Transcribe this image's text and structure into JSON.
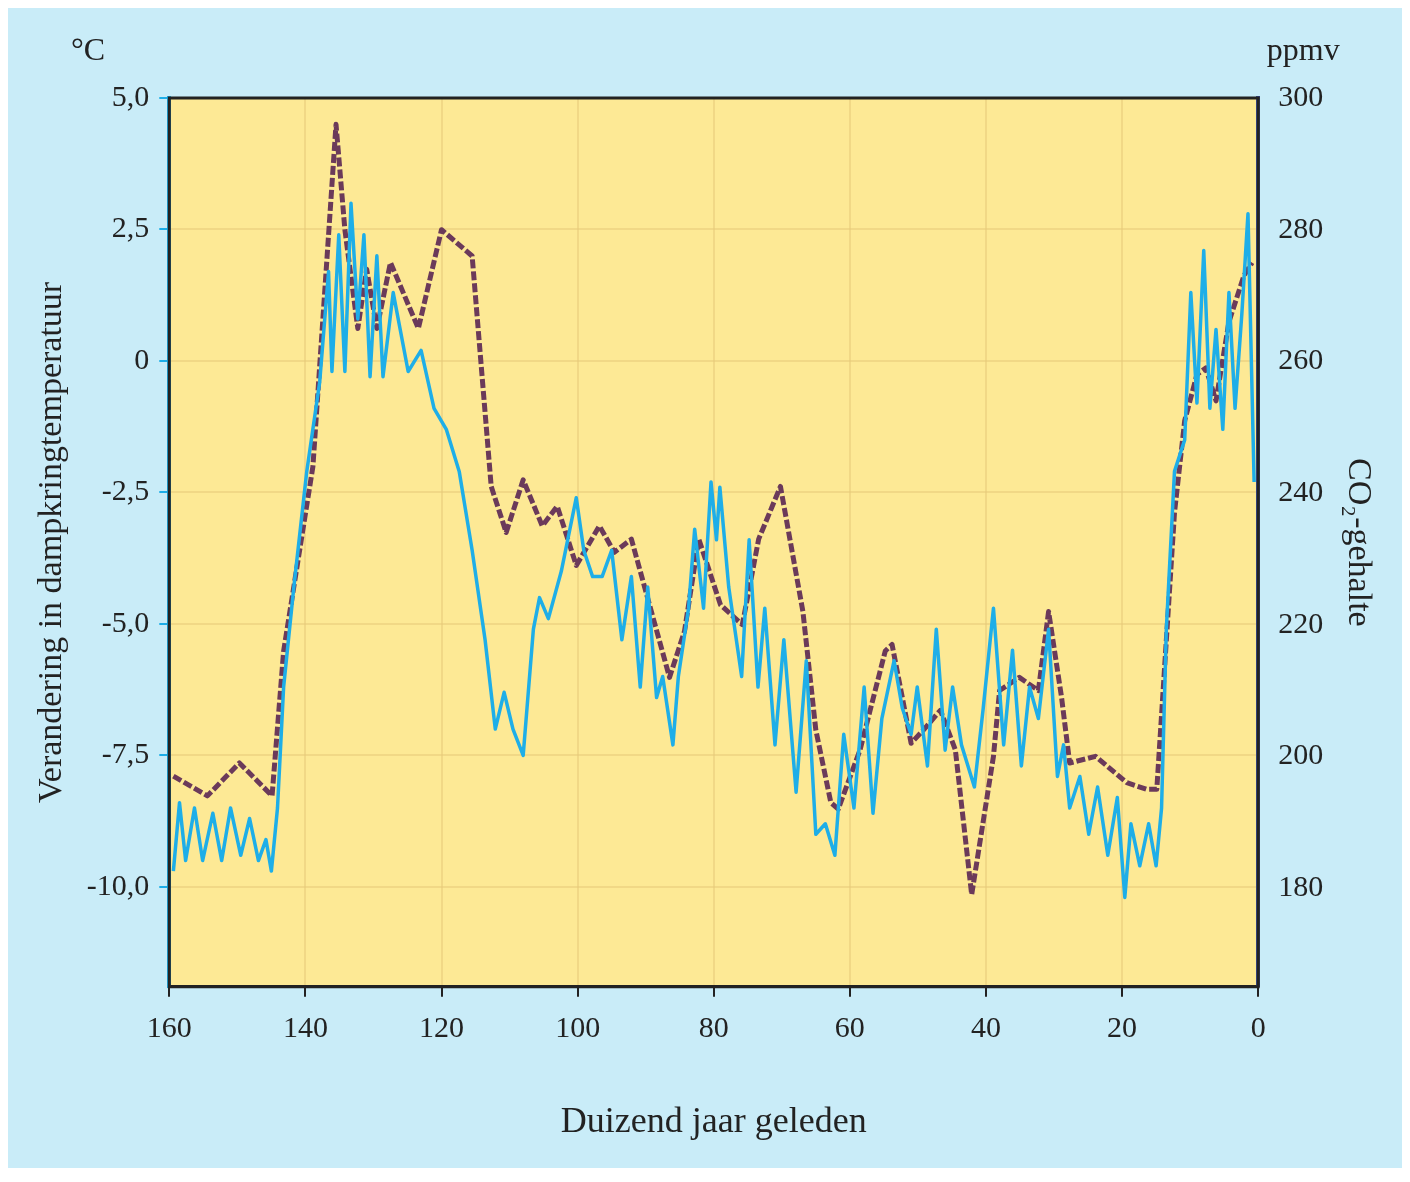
{
  "chart_data": {
    "type": "line",
    "xlabel": "Duizend jaar geleden",
    "ylabel": "Verandering in dampkringtemperatuur",
    "y2label": "CO₂-gehalte",
    "annotations": [
      "°C",
      "ppmv"
    ],
    "xlim": [
      160,
      0
    ],
    "xticks": [
      160,
      140,
      120,
      100,
      80,
      60,
      40,
      20,
      0
    ],
    "ylim": [
      -11.9,
      5.0
    ],
    "yticks": [
      {
        "value": 5,
        "label": "5,0"
      },
      {
        "value": 2.5,
        "label": "2,5"
      },
      0,
      {
        "value": -2.5,
        "label": "-2,5"
      },
      {
        "value": -5,
        "label": "-5,0"
      },
      {
        "value": -7.5,
        "label": "-7,5"
      },
      {
        "value": -10,
        "label": "-10,0"
      }
    ],
    "y2lim": [
      165,
      300
    ],
    "y2ticks": [
      180,
      200,
      220,
      240,
      260,
      280,
      300
    ],
    "grid": true,
    "legend": false,
    "marker": "none",
    "series": [
      {
        "color": "#1eaee8",
        "axis": "y",
        "line_style": "solid",
        "x": [
          159.4,
          158.5,
          157.6,
          156.3,
          155.1,
          153.6,
          152.3,
          151.0,
          149.5,
          148.2,
          146.9,
          145.8,
          145.0,
          144.1,
          143.2,
          141.7,
          139.8,
          137.9,
          136.6,
          136.1,
          135.1,
          134.2,
          133.3,
          132.3,
          131.4,
          130.5,
          129.5,
          128.6,
          127.1,
          124.9,
          123.0,
          121.1,
          119.3,
          117.4,
          115.5,
          113.6,
          112.1,
          110.8,
          109.5,
          108.0,
          106.5,
          105.6,
          104.3,
          102.4,
          100.2,
          99.1,
          97.8,
          96.4,
          95.0,
          93.5,
          92.1,
          90.8,
          89.7,
          88.4,
          87.5,
          86.0,
          85.2,
          83.7,
          82.8,
          81.5,
          80.4,
          79.6,
          79.1,
          77.8,
          75.9,
          74.8,
          73.5,
          72.5,
          71.0,
          69.7,
          67.9,
          66.4,
          65.0,
          63.6,
          62.2,
          60.9,
          59.4,
          57.9,
          56.6,
          55.3,
          53.5,
          52.3,
          51.0,
          50.1,
          48.6,
          47.3,
          46.0,
          44.9,
          43.6,
          41.7,
          40.4,
          38.9,
          37.4,
          36.1,
          34.8,
          33.6,
          32.3,
          30.8,
          29.5,
          28.6,
          27.7,
          26.2,
          24.9,
          23.6,
          22.1,
          20.7,
          19.6,
          18.7,
          17.4,
          16.1,
          15.0,
          14.2,
          13.5,
          12.3,
          10.8,
          9.9,
          9.0,
          8.0,
          7.1,
          6.2,
          5.2,
          4.3,
          3.4,
          2.4,
          1.5,
          0.6
        ],
        "values": [
          -9.7,
          -8.4,
          -9.5,
          -8.5,
          -9.5,
          -8.6,
          -9.5,
          -8.5,
          -9.4,
          -8.7,
          -9.5,
          -9.1,
          -9.7,
          -8.5,
          -6.2,
          -4.3,
          -2.1,
          -0.4,
          1.7,
          -0.2,
          2.4,
          -0.2,
          3.0,
          0.8,
          2.4,
          -0.3,
          2.0,
          -0.3,
          1.3,
          -0.2,
          0.2,
          -0.9,
          -1.3,
          -2.1,
          -3.6,
          -5.3,
          -7.0,
          -6.3,
          -7.0,
          -7.5,
          -5.1,
          -4.5,
          -4.9,
          -4.0,
          -2.6,
          -3.6,
          -4.1,
          -4.1,
          -3.6,
          -5.3,
          -4.1,
          -6.2,
          -4.3,
          -6.4,
          -6.0,
          -7.3,
          -6.0,
          -4.7,
          -3.2,
          -4.7,
          -2.3,
          -3.4,
          -2.4,
          -4.3,
          -6.0,
          -3.4,
          -6.2,
          -4.7,
          -7.3,
          -5.3,
          -8.2,
          -5.7,
          -9.0,
          -8.8,
          -9.4,
          -7.1,
          -8.5,
          -6.2,
          -8.6,
          -6.8,
          -5.7,
          -6.6,
          -7.1,
          -6.2,
          -7.7,
          -5.1,
          -7.4,
          -6.2,
          -7.3,
          -8.1,
          -6.6,
          -4.7,
          -7.3,
          -5.5,
          -7.7,
          -6.2,
          -6.8,
          -5.1,
          -7.9,
          -7.3,
          -8.5,
          -7.9,
          -9.0,
          -8.1,
          -9.4,
          -8.3,
          -10.2,
          -8.8,
          -9.6,
          -8.8,
          -9.6,
          -8.5,
          -5.1,
          -2.1,
          -1.5,
          1.3,
          -0.8,
          2.1,
          -0.9,
          0.6,
          -1.3,
          1.3,
          -0.9,
          0.9,
          2.8,
          -2.3
        ]
      },
      {
        "color": "#6b3a5a",
        "axis": "y2",
        "line_style": "dashed",
        "x": [
          159.4,
          154.4,
          149.7,
          144.9,
          143.2,
          138.9,
          135.5,
          134.2,
          132.3,
          131.0,
          129.5,
          127.5,
          123.4,
          120.0,
          115.5,
          112.7,
          110.5,
          108.0,
          105.2,
          103.0,
          100.2,
          96.8,
          94.6,
          92.1,
          86.5,
          84.3,
          82.2,
          79.0,
          75.8,
          73.4,
          70.2,
          66.9,
          65.0,
          62.8,
          61.7,
          58.5,
          54.8,
          53.8,
          51.0,
          49.2,
          46.7,
          44.5,
          42.1,
          38.9,
          38.0,
          35.1,
          32.3,
          30.8,
          28.9,
          27.7,
          23.9,
          19.3,
          16.4,
          14.9,
          13.6,
          12.3,
          10.8,
          9.0,
          7.7,
          6.2,
          4.3,
          2.1,
          0.9
        ],
        "values": [
          197,
          194,
          199,
          194,
          216,
          244,
          296,
          280,
          265,
          274,
          265,
          275,
          265,
          280,
          276,
          241,
          234,
          242,
          235,
          238,
          229,
          235,
          231,
          233,
          212,
          219,
          233,
          223,
          220,
          233,
          241,
          222,
          204,
          193,
          192,
          201,
          216,
          217,
          202,
          204,
          207,
          201,
          179,
          200,
          210,
          212,
          210,
          222,
          209,
          199,
          200,
          196,
          195,
          195,
          216,
          237,
          251,
          258,
          259,
          254,
          266,
          273,
          275
        ]
      }
    ]
  }
}
